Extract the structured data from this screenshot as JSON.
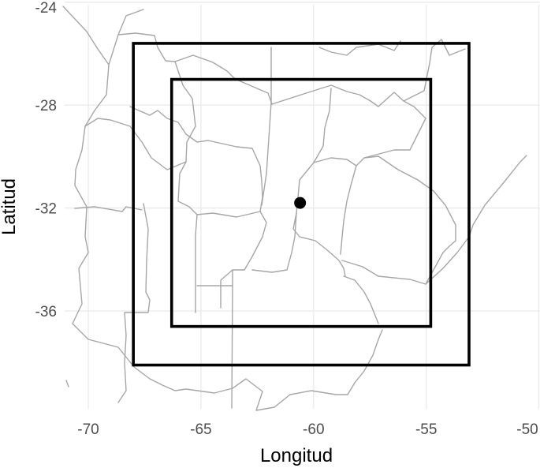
{
  "map": {
    "xlabel": "Longitud",
    "ylabel": "Latitud",
    "x_ticks": [
      "-70",
      "-65",
      "-60",
      "-55",
      "-50"
    ],
    "y_ticks": [
      "-24",
      "-28",
      "-32",
      "-36"
    ],
    "x_tick_values": [
      -70,
      -65,
      -60,
      -55,
      -50
    ],
    "y_tick_values": [
      -24,
      -28,
      -32,
      -36
    ],
    "xlim": [
      -71.05,
      -49.95
    ],
    "ylim": [
      -39.8,
      -24.1
    ],
    "grid": true,
    "background": "#ffffff",
    "grid_color": "#ebebeb",
    "border_color": "#a6a6a6",
    "box_color": "#000000",
    "outer_box": {
      "lon_min": -68.0,
      "lon_max": -53.1,
      "lat_min": -38.1,
      "lat_max": -25.6
    },
    "inner_box": {
      "lon_min": -66.3,
      "lon_max": -54.8,
      "lat_min": -36.6,
      "lat_max": -27.0
    },
    "point": {
      "lon": -60.6,
      "lat": -31.8
    }
  }
}
